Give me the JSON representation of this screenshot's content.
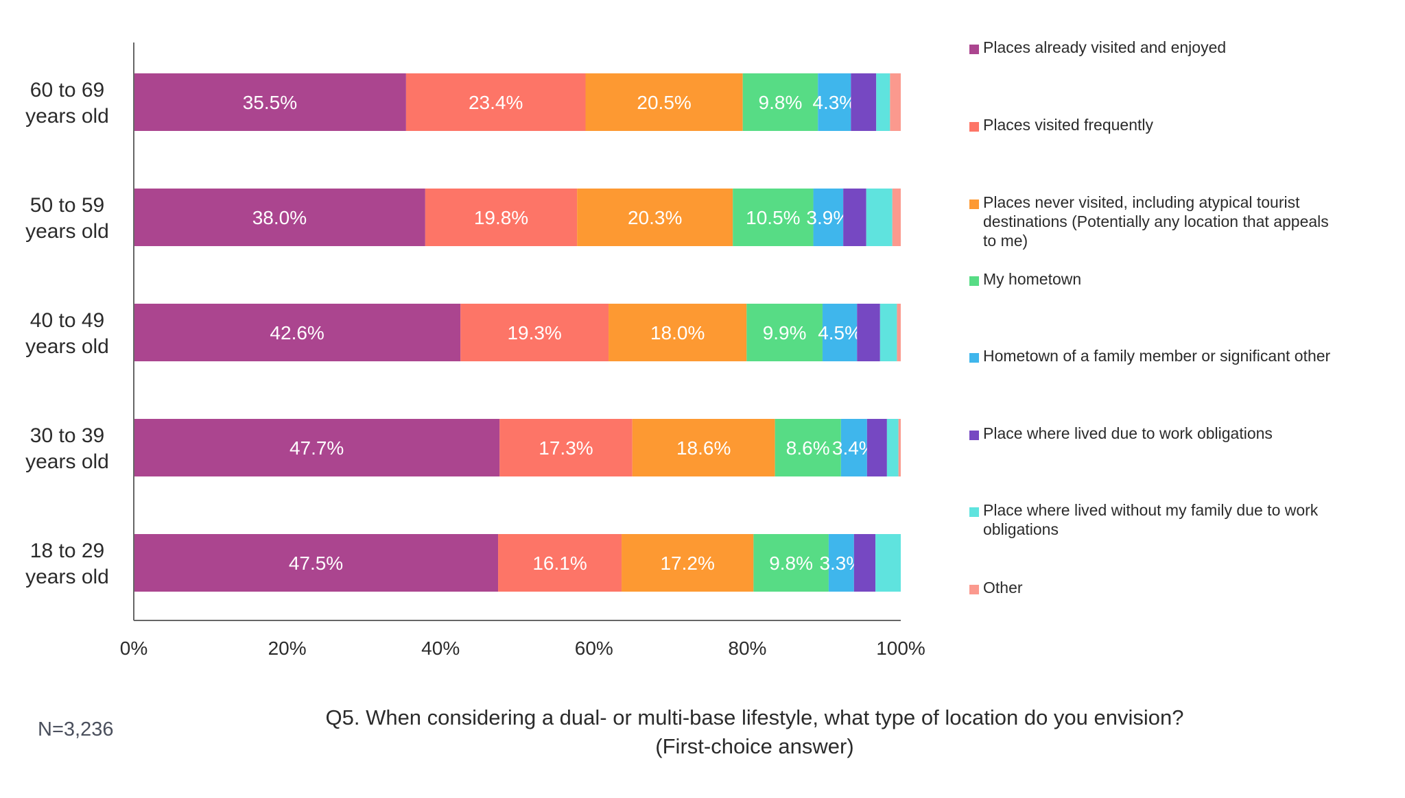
{
  "chart_data": {
    "type": "bar",
    "orientation": "horizontal",
    "stacked": true,
    "categories": [
      "60 to 69 years old",
      "50 to 59 years old",
      "40 to 49 years old",
      "30 to 39 years old",
      "18 to 29 years old"
    ],
    "category_lines": [
      [
        "60 to 69",
        "years old"
      ],
      [
        "50 to 59",
        "years old"
      ],
      [
        "40 to 49",
        "years old"
      ],
      [
        "30 to 39",
        "years old"
      ],
      [
        "18 to 29",
        "years old"
      ]
    ],
    "series": [
      {
        "name": "Places already visited and enjoyed",
        "name_lines": [
          "Places already visited and enjoyed"
        ],
        "color": "#ab458f",
        "values": [
          35.5,
          38.0,
          42.6,
          47.7,
          47.5
        ],
        "labels": [
          "35.5%",
          "38.0%",
          "42.6%",
          "47.7%",
          "47.5%"
        ]
      },
      {
        "name": "Places visited frequently",
        "name_lines": [
          "Places visited frequently"
        ],
        "color": "#fd7567",
        "values": [
          23.4,
          19.8,
          19.3,
          17.3,
          16.1
        ],
        "labels": [
          "23.4%",
          "19.8%",
          "19.3%",
          "17.3%",
          "16.1%"
        ]
      },
      {
        "name": "Places never visited, including atypical tourist destinations (Potentially any location that appeals to me)",
        "name_lines": [
          "Places never visited, including atypical tourist",
          "destinations (Potentially any location that appeals",
          "to me)"
        ],
        "color": "#fd9932",
        "values": [
          20.5,
          20.3,
          18.0,
          18.6,
          17.2
        ],
        "labels": [
          "20.5%",
          "20.3%",
          "18.0%",
          "18.6%",
          "17.2%"
        ]
      },
      {
        "name": "My hometown",
        "name_lines": [
          "My hometown"
        ],
        "color": "#57dc85",
        "values": [
          9.8,
          10.5,
          9.9,
          8.6,
          9.8
        ],
        "labels": [
          "9.8%",
          "10.5%",
          "9.9%",
          "8.6%",
          "9.8%"
        ]
      },
      {
        "name": "Hometown of a family member or significant other",
        "name_lines": [
          "Hometown of a family member or significant other"
        ],
        "color": "#3fb6ec",
        "values": [
          4.3,
          3.9,
          4.5,
          3.4,
          3.3
        ],
        "labels": [
          "4.3%",
          "3.9%",
          "4.5%",
          "3.4%",
          "3.3%"
        ]
      },
      {
        "name": "Place where lived due to work obligations",
        "name_lines": [
          "Place where lived due to work obligations"
        ],
        "color": "#7648c2",
        "values": [
          3.3,
          3.0,
          3.0,
          2.6,
          2.8
        ],
        "labels": [
          "",
          "",
          "",
          "",
          ""
        ]
      },
      {
        "name": "Place where lived without my family due to work obligations",
        "name_lines": [
          "Place where lived without my family due to work",
          "obligations"
        ],
        "color": "#5fe3de",
        "values": [
          1.8,
          3.4,
          2.2,
          1.5,
          3.3
        ],
        "labels": [
          "",
          "",
          "",
          "",
          ""
        ]
      },
      {
        "name": "Other",
        "name_lines": [
          "Other"
        ],
        "color": "#fb998e",
        "values": [
          1.4,
          1.1,
          0.5,
          0.3,
          0.0
        ],
        "labels": [
          "",
          "",
          "",
          "",
          ""
        ]
      }
    ],
    "x_ticks": [
      "0%",
      "20%",
      "40%",
      "60%",
      "80%",
      "100%"
    ],
    "xlim": [
      0,
      100
    ],
    "legend_position": "right",
    "grid": false
  },
  "footer": {
    "n_label": "N=3,236",
    "question_lines": [
      "Q5. When considering a dual- or multi-base lifestyle, what type of location do you envision?",
      "(First-choice answer)"
    ]
  }
}
